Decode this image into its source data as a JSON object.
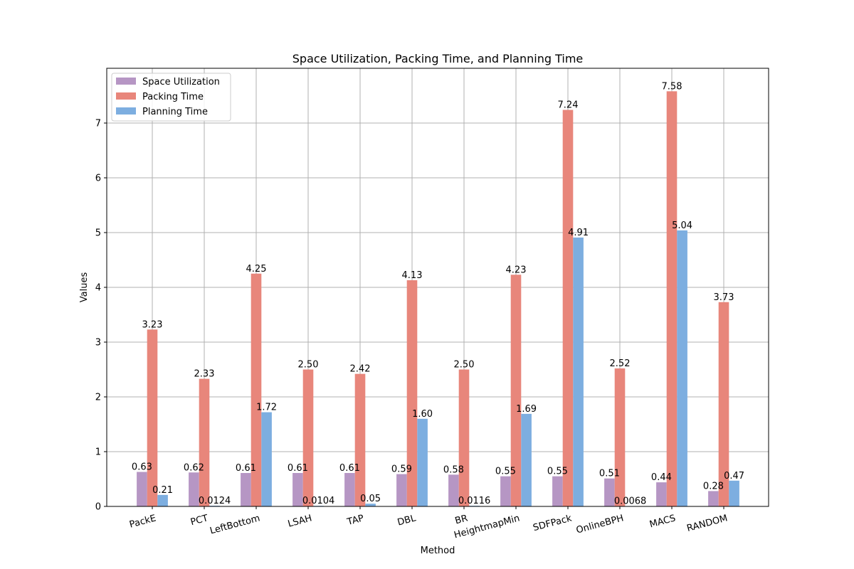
{
  "chart_data": {
    "type": "bar",
    "title": "Space Utilization, Packing Time, and Planning Time",
    "xlabel": "Method",
    "ylabel": "Values",
    "ylim": [
      0,
      8
    ],
    "yticks": [
      0,
      1,
      2,
      3,
      4,
      5,
      6,
      7
    ],
    "grid": true,
    "legend_position": "top-left",
    "categories": [
      "PackE",
      "PCT",
      "LeftBottom",
      "LSAH",
      "TAP",
      "DBL",
      "BR",
      "HeightmapMin",
      "SDFPack",
      "OnlineBPH",
      "MACS",
      "RANDOM"
    ],
    "series": [
      {
        "name": "Space Utilization",
        "color": "#b696c4",
        "values": [
          0.63,
          0.62,
          0.61,
          0.61,
          0.61,
          0.59,
          0.58,
          0.55,
          0.55,
          0.51,
          0.44,
          0.28
        ],
        "labels": [
          "0.63",
          "0.62",
          "0.61",
          "0.61",
          "0.61",
          "0.59",
          "0.58",
          "0.55",
          "0.55",
          "0.51",
          "0.44",
          "0.28"
        ]
      },
      {
        "name": "Packing Time",
        "color": "#e8867b",
        "values": [
          3.23,
          2.33,
          4.25,
          2.5,
          2.42,
          4.13,
          2.5,
          4.23,
          7.24,
          2.52,
          7.58,
          3.73
        ],
        "labels": [
          "3.23",
          "2.33",
          "4.25",
          "2.50",
          "2.42",
          "4.13",
          "2.50",
          "4.23",
          "7.24",
          "2.52",
          "7.58",
          "3.73"
        ]
      },
      {
        "name": "Planning Time",
        "color": "#7daee0",
        "values": [
          0.21,
          0.0124,
          1.72,
          0.0104,
          0.05,
          1.6,
          0.0116,
          1.69,
          4.91,
          0.0068,
          5.04,
          0.47
        ],
        "labels": [
          "0.21",
          "0.0124",
          "1.72",
          "0.0104",
          "0.05",
          "1.60",
          "0.0116",
          "1.69",
          "4.91",
          "0.0068",
          "5.04",
          "0.47"
        ]
      }
    ]
  }
}
